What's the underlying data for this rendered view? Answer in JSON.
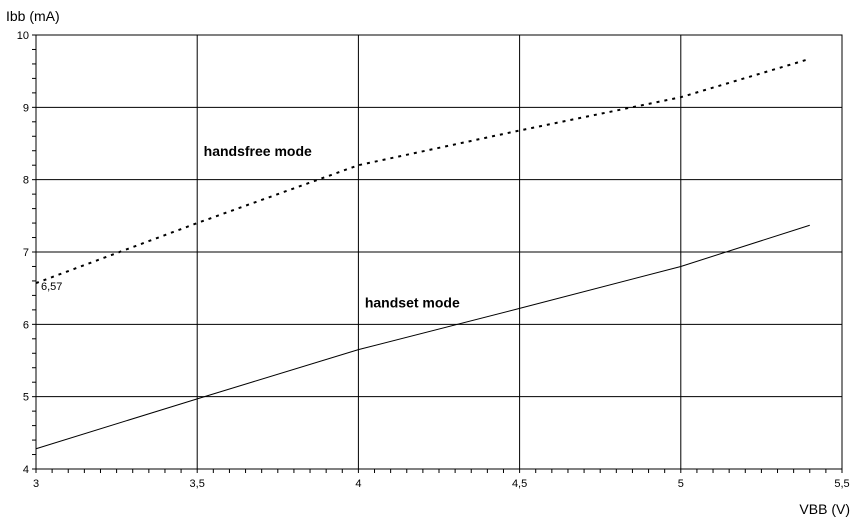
{
  "chart_data": {
    "type": "line",
    "xlabel": "VBB (V)",
    "ylabel": "Ibb (mA)",
    "xlim": [
      3,
      5.5
    ],
    "ylim": [
      4,
      10
    ],
    "x_ticks": [
      3,
      3.5,
      4,
      4.5,
      5,
      5.5
    ],
    "x_tick_labels": [
      "3",
      "3,5",
      "4",
      "4,5",
      "5",
      "5,5"
    ],
    "y_ticks": [
      4,
      5,
      6,
      7,
      8,
      9,
      10
    ],
    "y_tick_labels": [
      "4",
      "5",
      "6",
      "7",
      "8",
      "9",
      "10"
    ],
    "grid": true,
    "series": [
      {
        "name": "handsfree mode",
        "style": "dotted",
        "x": [
          3,
          3.5,
          4,
          4.5,
          5,
          5.4
        ],
        "y": [
          6.57,
          7.4,
          8.2,
          8.68,
          9.14,
          9.67
        ]
      },
      {
        "name": "handset mode",
        "style": "solid",
        "x": [
          3,
          3.5,
          4,
          4.5,
          5,
          5.4
        ],
        "y": [
          4.28,
          4.97,
          5.65,
          6.22,
          6.8,
          7.37
        ]
      }
    ],
    "annotations": [
      {
        "text": "6,57",
        "x": 3,
        "y": 6.57
      }
    ]
  }
}
